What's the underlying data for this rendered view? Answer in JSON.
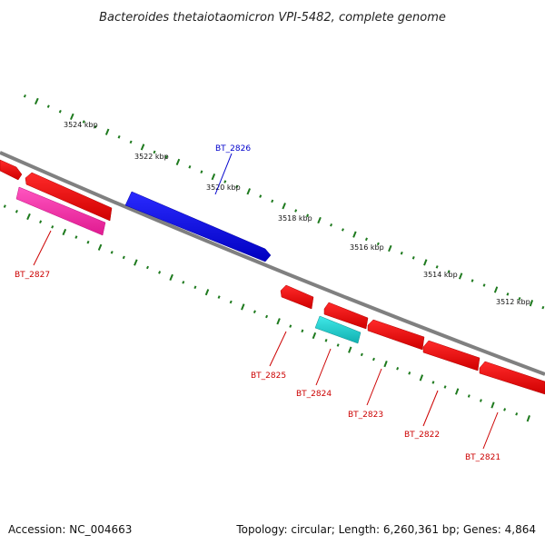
{
  "title": "Bacteroides thetaiotaomicron VPI-5482, complete genome",
  "accession": "Accession: NC_004663",
  "summary": "Topology: circular; Length: 6,260,361 bp; Genes: 4,864",
  "scale_labels": [
    "3524 kbp",
    "3522 kbp",
    "3520 kbp",
    "3518 kbp",
    "3516 kbp",
    "3514 kbp",
    "3512 kbp"
  ],
  "genes": [
    {
      "label": "BT_2827",
      "color": "#cc0000"
    },
    {
      "label": "BT_2826",
      "color": "#0000cc"
    },
    {
      "label": "BT_2825",
      "color": "#cc0000"
    },
    {
      "label": "BT_2824",
      "color": "#cc0000"
    },
    {
      "label": "BT_2823",
      "color": "#cc0000"
    },
    {
      "label": "BT_2822",
      "color": "#cc0000"
    },
    {
      "label": "BT_2821",
      "color": "#cc0000"
    }
  ],
  "colors": {
    "backbone": "#808080",
    "tick": "#1e7a1e",
    "forward_gene": "#2020ee",
    "reverse_gene": "#ff1a1a",
    "rna": "#ff3ab0",
    "other": "#2ed8d8"
  }
}
